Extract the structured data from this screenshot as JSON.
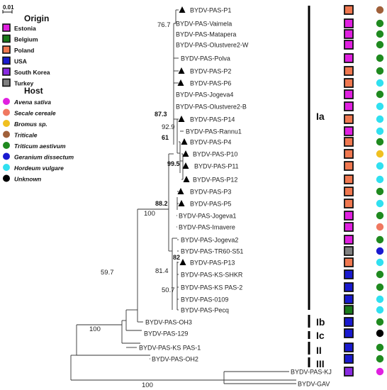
{
  "scale_label": "0.01",
  "legend": {
    "origin_title": "Origin",
    "origin": [
      {
        "label": "Estonia",
        "color": "#e020e0"
      },
      {
        "label": "Belgium",
        "color": "#1a7a1a"
      },
      {
        "label": "Poland",
        "color": "#f07850"
      },
      {
        "label": "USA",
        "color": "#1a1ad0"
      },
      {
        "label": "South Korea",
        "color": "#8a2be2"
      },
      {
        "label": "Turkey",
        "color": "#808080"
      }
    ],
    "host_title": "Host",
    "host": [
      {
        "label": "Avena sativa",
        "color": "#e020e0"
      },
      {
        "label": "Secale cereale",
        "color": "#f07860"
      },
      {
        "label": "Bromus sp.",
        "color": "#f0c020"
      },
      {
        "label": "Triticale",
        "color": "#a0603a"
      },
      {
        "label": "Triticum aestivum",
        "color": "#1f8a1f"
      },
      {
        "label": "Geranium dissectum",
        "color": "#1a1ad0"
      },
      {
        "label": "Hordeum vulgare",
        "color": "#30e0f0"
      },
      {
        "label": "Unknown",
        "color": "#000000"
      }
    ]
  },
  "tips": [
    {
      "label": "BYDV-PAS-P1",
      "triangle": true,
      "origin": 2,
      "host": 3
    },
    {
      "label": "BYDV-PAS-Vaimela",
      "triangle": false,
      "origin": 0,
      "host": 4
    },
    {
      "label": "BYDV-PAS-Matapera",
      "triangle": false,
      "origin": 0,
      "host": 4
    },
    {
      "label": "BYDV-PAS-Olustvere2-W",
      "triangle": false,
      "origin": 0,
      "host": 4
    },
    {
      "label": "BYDV-PAS-Polva",
      "triangle": false,
      "origin": 0,
      "host": 4
    },
    {
      "label": "BYDV-PAS-P2",
      "triangle": true,
      "origin": 2,
      "host": 4
    },
    {
      "label": "BYDV-PAS-P6",
      "triangle": true,
      "origin": 2,
      "host": 6
    },
    {
      "label": "BYDV-PAS-Jogeva4",
      "triangle": false,
      "origin": 0,
      "host": 4
    },
    {
      "label": "BYDV-PAS-Olustvere2-B",
      "triangle": false,
      "origin": 0,
      "host": 6
    },
    {
      "label": "BYDV-PAS-P14",
      "triangle": true,
      "origin": 2,
      "host": 6
    },
    {
      "label": "BYDV-PAS-Rannu1",
      "triangle": false,
      "origin": 0,
      "host": 6
    },
    {
      "label": "BYDV-PAS-P4",
      "triangle": true,
      "origin": 2,
      "host": 4
    },
    {
      "label": "BYDV-PAS-P10",
      "triangle": true,
      "origin": 2,
      "host": 2
    },
    {
      "label": "BYDV-PAS-P11",
      "triangle": true,
      "origin": 2,
      "host": 6
    },
    {
      "label": "BYDV-PAS-P12",
      "triangle": true,
      "origin": 2,
      "host": 6
    },
    {
      "label": "BYDV-PAS-P3",
      "triangle": true,
      "origin": 2,
      "host": 4
    },
    {
      "label": "BYDV-PAS-P5",
      "triangle": true,
      "origin": 2,
      "host": 6
    },
    {
      "label": "BYDV-PAS-Jogeva1",
      "triangle": false,
      "origin": 0,
      "host": 4
    },
    {
      "label": "BYDV-PAS-Imavere",
      "triangle": false,
      "origin": 0,
      "host": 1
    },
    {
      "label": "BYDV-PAS-Jogeva2",
      "triangle": false,
      "origin": 0,
      "host": 4
    },
    {
      "label": "BYDV-PAS-TR60-S51",
      "triangle": false,
      "origin": 5,
      "host": 5
    },
    {
      "label": "BYDV-PAS-P13",
      "triangle": true,
      "origin": 2,
      "host": 6
    },
    {
      "label": "BYDV-PAS-KS-SHKR",
      "triangle": false,
      "origin": 3,
      "host": 4
    },
    {
      "label": "BYDV-PAS-KS PAS-2",
      "triangle": false,
      "origin": 3,
      "host": 4
    },
    {
      "label": "BYDV-PAS-0109",
      "triangle": false,
      "origin": 3,
      "host": 6
    },
    {
      "label": "BYDV-PAS-Pecq",
      "triangle": false,
      "origin": 1,
      "host": 6
    },
    {
      "label": "BYDV-PAS-OH3",
      "triangle": false,
      "origin": 3,
      "host": 4
    },
    {
      "label": "BYDV-PAS-129",
      "triangle": false,
      "origin": 3,
      "host": 7
    },
    {
      "label": "BYDV-PAS-KS PAS-1",
      "triangle": false,
      "origin": 3,
      "host": 4
    },
    {
      "label": "BYDV-PAS-OH2",
      "triangle": false,
      "origin": 3,
      "host": 4
    },
    {
      "label": "BYDV-PAS-KJ",
      "triangle": false,
      "origin": 4,
      "host": 0
    },
    {
      "label": "BYDV-GAV",
      "triangle": false,
      "origin": null,
      "host": null
    }
  ],
  "bootstrap": [
    "76.7",
    "87.3",
    "92.9",
    "61",
    "99.5",
    "88.2",
    "100",
    "82",
    "81.4",
    "50.7",
    "59.7",
    "100",
    "100"
  ],
  "clades": [
    "Ia",
    "Ib",
    "Ic",
    "II",
    "III"
  ]
}
